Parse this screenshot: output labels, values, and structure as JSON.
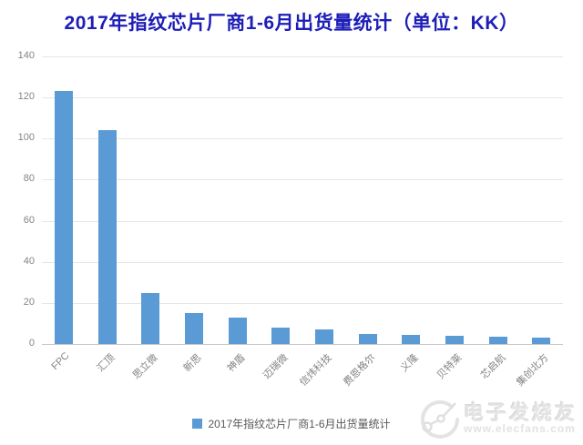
{
  "title": "2017年指纹芯片厂商1-6月出货量统计（单位：KK）",
  "colors": {
    "bar": "#5b9bd5",
    "title_text": "#1d1db8",
    "axis_text": "#848484",
    "gridline": "#e6e6e6",
    "axis_line": "#c6c6c6",
    "legend_text": "#595959",
    "watermark_text": "#e4e4e4"
  },
  "chart_data": {
    "type": "bar",
    "title": "2017年指纹芯片厂商1-6月出货量统计（单位：KK）",
    "unit": "KK",
    "categories": [
      "FPC",
      "汇顶",
      "思立微",
      "新思",
      "神盾",
      "迈瑞微",
      "信炜科技",
      "费恩格尔",
      "义隆",
      "贝特莱",
      "芯启航",
      "集创北方"
    ],
    "values": [
      123,
      104,
      25,
      15,
      13,
      8,
      7,
      5,
      4.5,
      4,
      3.5,
      3
    ],
    "xlabel": "",
    "ylabel": "",
    "ylim": [
      0,
      140
    ],
    "yticks": [
      0,
      20,
      40,
      60,
      80,
      100,
      120,
      140
    ],
    "grid": true,
    "legend_position": "bottom"
  },
  "legend": {
    "label": "2017年指纹芯片厂商1-6月出货量统计"
  },
  "watermark": {
    "name": "电子发烧友",
    "url": "www.elecfans.com"
  }
}
